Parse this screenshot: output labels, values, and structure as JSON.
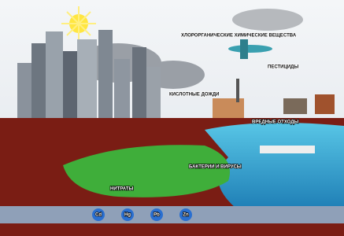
{
  "labels": {
    "chloro": "ХЛОРОРГАНИЧЕСКИЕ ХИМИЧЕСКИЕ ВЕЩЕСТВА",
    "pesticides": "ПЕСТИЦИДЫ",
    "acid_rain": "КИСЛОТНЫЕ ДОЖДИ",
    "waste": "ВРЕДНЫЕ ОТХОДЫ",
    "nitrates": "НИТРАТЫ",
    "bacteria": "БАКТЕРИИ И ВИРУСЫ"
  },
  "metals": [
    "Cd",
    "Hg",
    "Pb",
    "Zn"
  ]
}
